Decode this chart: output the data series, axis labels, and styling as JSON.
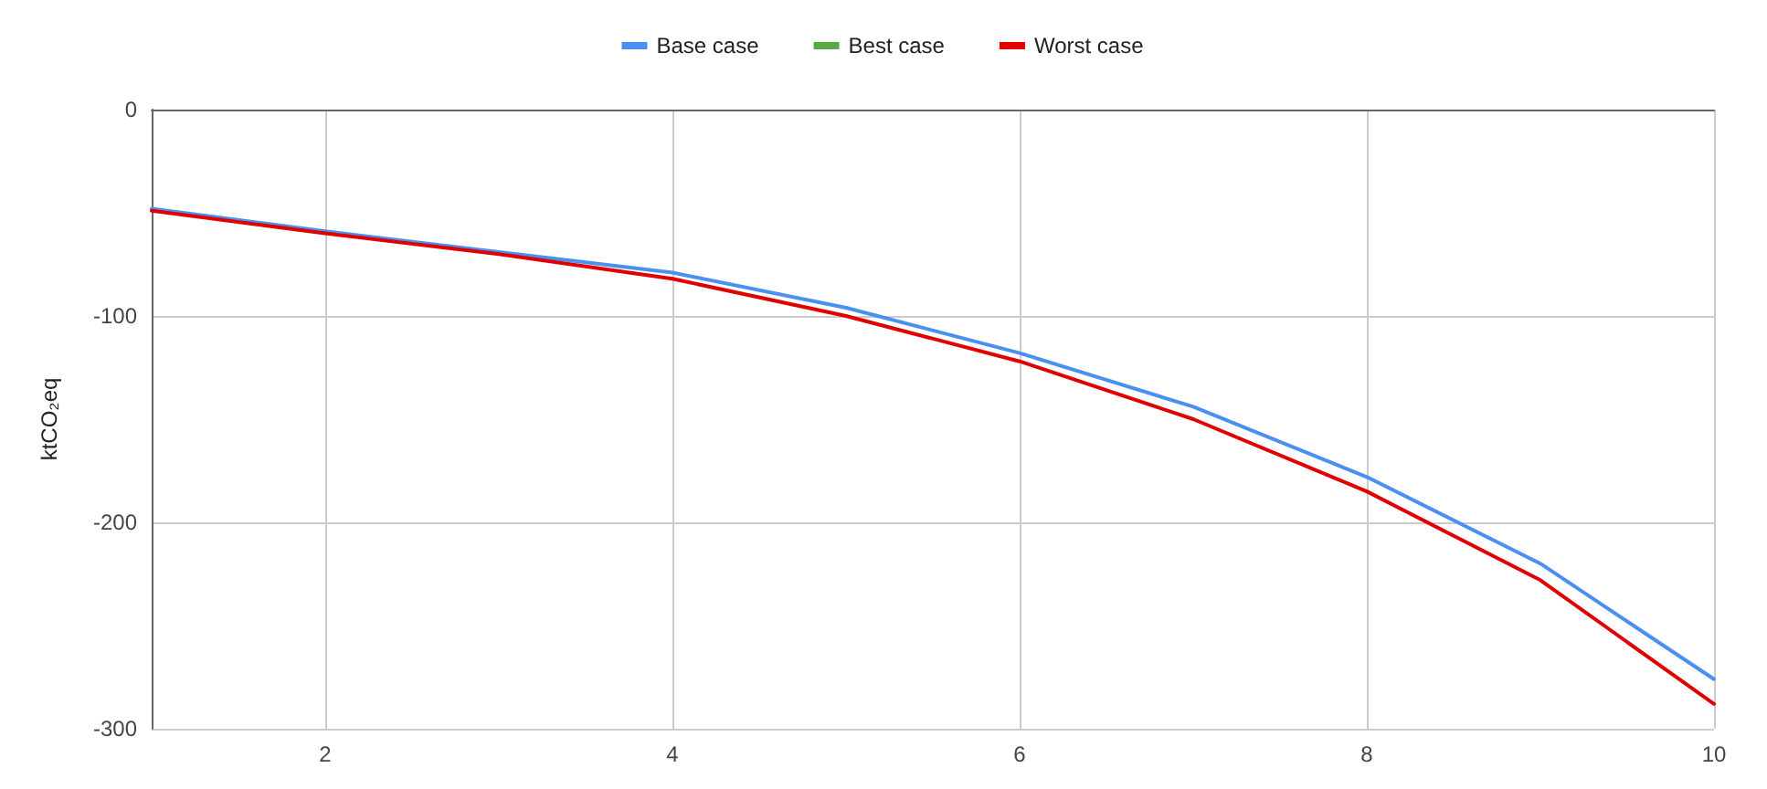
{
  "chart_data": {
    "type": "line",
    "ylabel": "ktCO₂eq",
    "x": [
      1,
      2,
      3,
      4,
      5,
      6,
      7,
      8,
      9,
      10
    ],
    "series": [
      {
        "name": "Base case",
        "color": "#4a90f0",
        "values": [
          -48,
          -59,
          -69,
          -79,
          -96,
          -118,
          -144,
          -178,
          -220,
          -276
        ]
      },
      {
        "name": "Best case",
        "color": "#58a848",
        "values": [
          null,
          null,
          null,
          null,
          null,
          null,
          null,
          null,
          null,
          null
        ]
      },
      {
        "name": "Worst case",
        "color": "#e00000",
        "values": [
          -49,
          -60,
          -70,
          -82,
          -100,
          -122,
          -150,
          -185,
          -228,
          -288
        ]
      }
    ],
    "xlim": [
      1,
      10
    ],
    "xticks": [
      2,
      4,
      6,
      8,
      10
    ],
    "ylim": [
      -300,
      0
    ],
    "yticks": [
      -300,
      -200,
      -100,
      0
    ],
    "grid": true,
    "legend": "top",
    "marker": "none",
    "line_style": "solid"
  }
}
